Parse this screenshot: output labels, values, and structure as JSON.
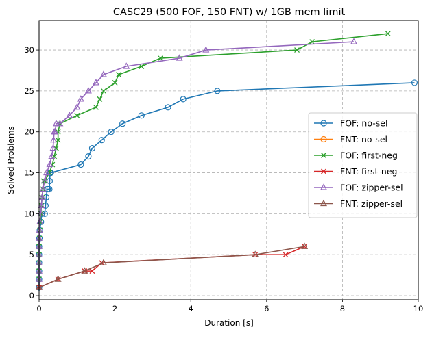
{
  "chart_data": {
    "type": "line",
    "title": "CASC29 (500 FOF, 150 FNT) w/ 1GB mem limit",
    "xlabel": "Duration [s]",
    "ylabel": "Solved Problems",
    "xlim": [
      0,
      10
    ],
    "ylim": [
      -0.5,
      33.6
    ],
    "xticks": [
      0,
      2,
      4,
      6,
      8,
      10
    ],
    "yticks": [
      0,
      5,
      10,
      15,
      20,
      25,
      30
    ],
    "grid": true,
    "legend_position": "center-right",
    "series": [
      {
        "name": "FOF: no-sel",
        "color": "#1f77b4",
        "marker": "circle-open",
        "x": [
          0.0,
          0.0,
          0.0,
          0.0,
          0.0,
          0.0,
          0.01,
          0.02,
          0.05,
          0.07,
          0.15,
          0.17,
          0.19,
          0.21,
          0.23,
          0.27,
          0.28,
          0.29,
          0.31,
          1.1,
          1.3,
          1.4,
          1.65,
          1.9,
          2.2,
          2.7,
          3.4,
          3.8,
          4.7,
          9.9
        ],
        "y": [
          1,
          2,
          3,
          4,
          5,
          6,
          7,
          8,
          9,
          10,
          10,
          11,
          12,
          13,
          13,
          13,
          14,
          15,
          15,
          16,
          17,
          18,
          19,
          20,
          21,
          22,
          23,
          24,
          25,
          26
        ]
      },
      {
        "name": "FNT: no-sel",
        "color": "#ff7f0e",
        "marker": "circle-open",
        "x": [],
        "y": []
      },
      {
        "name": "FOF: first-neg",
        "color": "#2ca02c",
        "marker": "x",
        "x": [
          0.0,
          0.0,
          0.0,
          0.0,
          0.0,
          0.0,
          0.01,
          0.02,
          0.03,
          0.05,
          0.06,
          0.08,
          0.1,
          0.12,
          0.15,
          0.27,
          0.35,
          0.4,
          0.45,
          0.5,
          0.5,
          0.55,
          1.0,
          1.5,
          1.6,
          1.7,
          2.0,
          2.1,
          2.7,
          3.2,
          6.8,
          7.2,
          9.2
        ],
        "y": [
          1,
          2,
          3,
          4,
          5,
          6,
          7,
          8,
          9,
          10,
          11,
          12,
          13,
          14,
          14,
          15,
          16,
          17,
          18,
          19,
          20,
          21,
          22,
          23,
          24,
          25,
          26,
          27,
          28,
          29,
          30,
          31,
          32
        ]
      },
      {
        "name": "FNT: first-neg",
        "color": "#d62728",
        "marker": "x",
        "x": [
          0.0,
          0.5,
          1.2,
          1.4,
          1.65,
          5.7,
          6.5,
          7.0
        ],
        "y": [
          1,
          2,
          3,
          3,
          4,
          5,
          5,
          6
        ]
      },
      {
        "name": "FOF: zipper-sel",
        "color": "#9467bd",
        "marker": "triangle-open",
        "x": [
          0.0,
          0.0,
          0.0,
          0.0,
          0.0,
          0.0,
          0.0,
          0.01,
          0.02,
          0.04,
          0.06,
          0.08,
          0.1,
          0.15,
          0.2,
          0.28,
          0.33,
          0.37,
          0.38,
          0.4,
          0.42,
          0.45,
          0.55,
          0.8,
          1.0,
          1.1,
          1.3,
          1.5,
          1.7,
          2.3,
          3.7,
          4.4,
          8.3
        ],
        "y": [
          1,
          2,
          3,
          4,
          5,
          6,
          7,
          8,
          9,
          10,
          11,
          12,
          13,
          14,
          15,
          16,
          17,
          18,
          19,
          20,
          20,
          21,
          21,
          22,
          23,
          24,
          25,
          26,
          27,
          28,
          29,
          30,
          31
        ]
      },
      {
        "name": "FNT: zipper-sel",
        "color": "#8c564b",
        "marker": "triangle-open",
        "x": [
          0.0,
          0.5,
          1.2,
          1.7,
          5.7,
          7.0
        ],
        "y": [
          1,
          2,
          3,
          4,
          5,
          6
        ]
      }
    ]
  }
}
